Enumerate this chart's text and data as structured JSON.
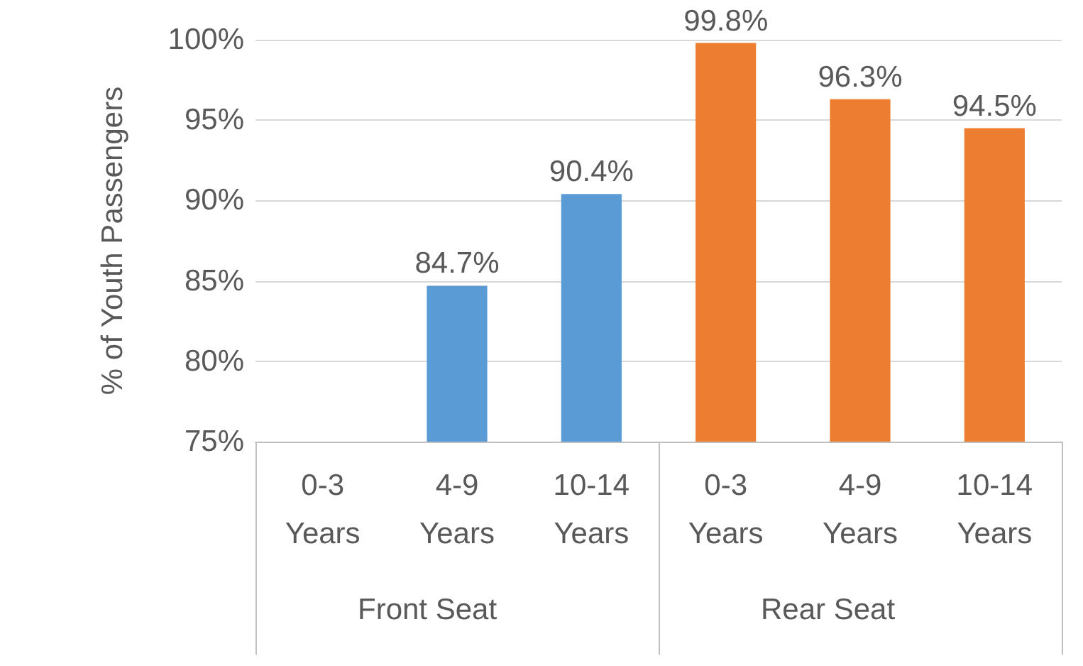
{
  "chart_data": {
    "type": "bar",
    "ylabel": "% of Youth Passengers",
    "categories": [
      "0-3 Years",
      "4-9 Years",
      "10-14 Years",
      "0-3 Years",
      "4-9 Years",
      "10-14 Years"
    ],
    "values": [
      null,
      84.7,
      90.4,
      99.8,
      96.3,
      94.5
    ],
    "value_labels": [
      null,
      "84.7%",
      "90.4%",
      "99.8%",
      "96.3%",
      "94.5%"
    ],
    "colors": [
      "#5b9bd5",
      "#5b9bd5",
      "#5b9bd5",
      "#ed7d31",
      "#ed7d31",
      "#ed7d31"
    ],
    "ylim": [
      75,
      100
    ],
    "yticks": [
      {
        "value": 75,
        "label": "75%"
      },
      {
        "value": 80,
        "label": "80%"
      },
      {
        "value": 85,
        "label": "85%"
      },
      {
        "value": 90,
        "label": "90%"
      },
      {
        "value": 95,
        "label": "95%"
      },
      {
        "value": 100,
        "label": "100%"
      }
    ],
    "annotations": [
      "Front Seat",
      "Rear Seat"
    ],
    "grid": "y"
  }
}
